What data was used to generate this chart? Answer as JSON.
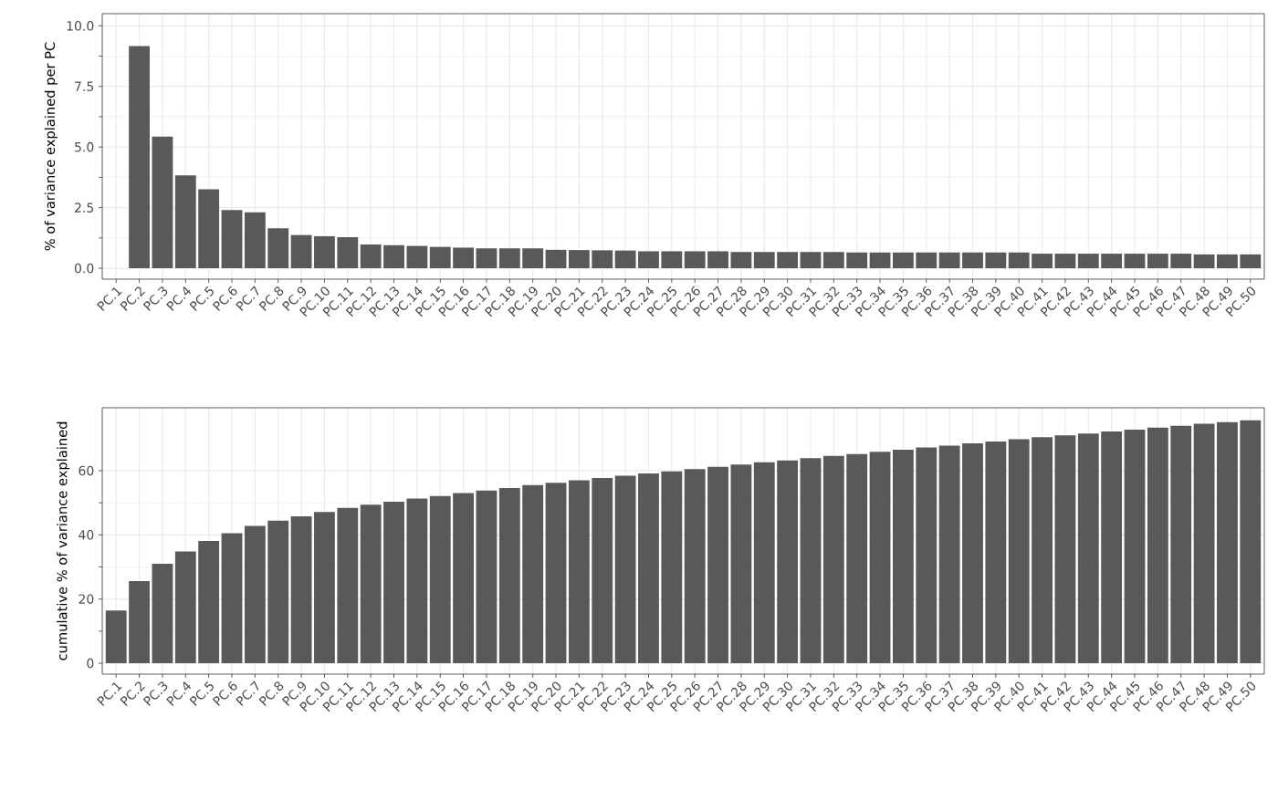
{
  "chart_data": [
    {
      "type": "bar",
      "ylabel": "% of variance explained per PC",
      "color": "#595959",
      "categories": [
        "PC.1",
        "PC.2",
        "PC.3",
        "PC.4",
        "PC.5",
        "PC.6",
        "PC.7",
        "PC.8",
        "PC.9",
        "PC.10",
        "PC.11",
        "PC.12",
        "PC.13",
        "PC.14",
        "PC.15",
        "PC.16",
        "PC.17",
        "PC.18",
        "PC.19",
        "PC.20",
        "PC.21",
        "PC.22",
        "PC.23",
        "PC.24",
        "PC.25",
        "PC.26",
        "PC.27",
        "PC.28",
        "PC.29",
        "PC.30",
        "PC.31",
        "PC.32",
        "PC.33",
        "PC.34",
        "PC.35",
        "PC.36",
        "PC.37",
        "PC.38",
        "PC.39",
        "PC.40",
        "PC.41",
        "PC.42",
        "PC.43",
        "PC.44",
        "PC.45",
        "PC.46",
        "PC.47",
        "PC.48",
        "PC.49",
        "PC.50"
      ],
      "values": [
        null,
        9.16,
        5.43,
        3.83,
        3.26,
        2.4,
        2.31,
        1.65,
        1.37,
        1.32,
        1.28,
        0.98,
        0.95,
        0.92,
        0.88,
        0.85,
        0.82,
        0.82,
        0.82,
        0.76,
        0.75,
        0.74,
        0.73,
        0.7,
        0.7,
        0.7,
        0.7,
        0.67,
        0.67,
        0.67,
        0.67,
        0.67,
        0.65,
        0.65,
        0.65,
        0.65,
        0.65,
        0.65,
        0.65,
        0.65,
        0.6,
        0.6,
        0.6,
        0.6,
        0.6,
        0.6,
        0.6,
        0.57,
        0.57,
        0.57
      ],
      "ylim": [
        -0.45,
        10.5
      ],
      "yticks": [
        {
          "value": 0,
          "label": "0.0"
        },
        {
          "value": 2.5,
          "label": "2.5"
        },
        {
          "value": 5,
          "label": "5.0"
        },
        {
          "value": 7.5,
          "label": "7.5"
        },
        {
          "value": 10,
          "label": "10.0"
        }
      ],
      "grid": true
    },
    {
      "type": "bar",
      "ylabel": "cumulative % of variance explained",
      "color": "#595959",
      "categories": [
        "PC.1",
        "PC.2",
        "PC.3",
        "PC.4",
        "PC.5",
        "PC.6",
        "PC.7",
        "PC.8",
        "PC.9",
        "PC.10",
        "PC.11",
        "PC.12",
        "PC.13",
        "PC.14",
        "PC.15",
        "PC.16",
        "PC.17",
        "PC.18",
        "PC.19",
        "PC.20",
        "PC.21",
        "PC.22",
        "PC.23",
        "PC.24",
        "PC.25",
        "PC.26",
        "PC.27",
        "PC.28",
        "PC.29",
        "PC.30",
        "PC.31",
        "PC.32",
        "PC.33",
        "PC.34",
        "PC.35",
        "PC.36",
        "PC.37",
        "PC.38",
        "PC.39",
        "PC.40",
        "PC.41",
        "PC.42",
        "PC.43",
        "PC.44",
        "PC.45",
        "PC.46",
        "PC.47",
        "PC.48",
        "PC.49",
        "PC.50"
      ],
      "values": [
        16.4,
        25.6,
        31.0,
        34.8,
        38.1,
        40.5,
        42.8,
        44.4,
        45.8,
        47.1,
        48.4,
        49.4,
        50.3,
        51.3,
        52.1,
        53.0,
        53.8,
        54.6,
        55.5,
        56.2,
        57.0,
        57.7,
        58.4,
        59.1,
        59.8,
        60.5,
        61.2,
        61.9,
        62.6,
        63.2,
        63.9,
        64.6,
        65.2,
        65.9,
        66.5,
        67.2,
        67.8,
        68.5,
        69.1,
        69.8,
        70.4,
        71.0,
        71.6,
        72.2,
        72.8,
        73.4,
        74.0,
        74.6,
        75.1,
        75.7
      ],
      "ylim": [
        -3.4,
        79.6
      ],
      "yticks": [
        0,
        20,
        40,
        60
      ],
      "grid": true
    }
  ]
}
